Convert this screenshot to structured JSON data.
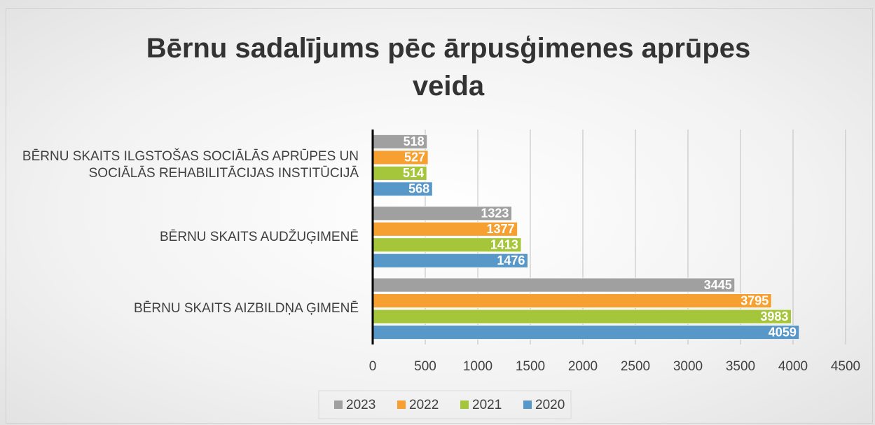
{
  "chart_data": {
    "type": "bar",
    "orientation": "horizontal",
    "title": "Bērnu sadalījums pēc ārpusģimenes aprūpes veida",
    "categories": [
      "BĒRNU SKAITS ILGSTOŠAS SOCIĀLĀS APRŪPES UN SOCIĀLĀS REHABILITĀCIJAS INSTITŪCIJĀ",
      "BĒRNU SKAITS AUDŽUĢIMENĒ",
      "BĒRNU SKAITS AIZBILDŅA ĢIMENĒ"
    ],
    "series": [
      {
        "name": "2023",
        "color": "#a0a0a0",
        "values": [
          518,
          1323,
          3445
        ]
      },
      {
        "name": "2022",
        "color": "#f5a031",
        "values": [
          527,
          1377,
          3795
        ]
      },
      {
        "name": "2021",
        "color": "#a5c63b",
        "values": [
          514,
          1413,
          3983
        ]
      },
      {
        "name": "2020",
        "color": "#5898c8",
        "values": [
          568,
          1476,
          4059
        ]
      }
    ],
    "xlim": [
      0,
      4500
    ],
    "xticks": [
      0,
      500,
      1000,
      1500,
      2000,
      2500,
      3000,
      3500,
      4000,
      4500
    ],
    "grid": true,
    "legend": "bottom"
  }
}
